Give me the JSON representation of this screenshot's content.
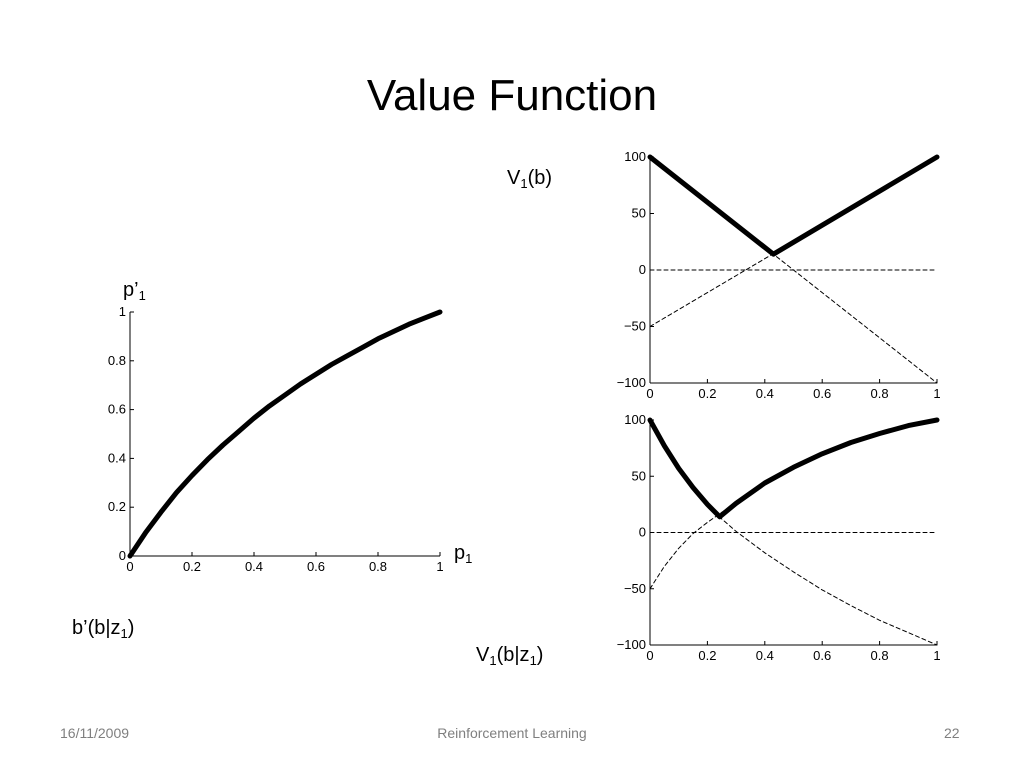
{
  "slide": {
    "title": "Value Function"
  },
  "labels": {
    "v1_b": {
      "main": "V",
      "sub": "1",
      "rest": "(b)"
    },
    "p1_prime": {
      "main": "p’",
      "sub": "1",
      "rest": ""
    },
    "p1": {
      "main": "p",
      "sub": "1",
      "rest": ""
    },
    "b_prime": {
      "main": "b’(b|z",
      "sub": "1",
      "rest": ")"
    },
    "v1_bz": {
      "main": "V",
      "sub": "1",
      "rest": "(b|z",
      "sub2": "1",
      "rest2": ")"
    }
  },
  "footer": {
    "date": "16/11/2009",
    "topic": "Reinforcement Learning",
    "page": "22"
  },
  "chart_data": [
    {
      "id": "belief-update",
      "type": "line",
      "x_ticks": [
        "0",
        "0.2",
        "0.4",
        "0.6",
        "0.8",
        "1"
      ],
      "y_ticks": [
        "0",
        "0.2",
        "0.4",
        "0.6",
        "0.8",
        "1"
      ],
      "xlim": [
        0,
        1
      ],
      "ylim": [
        0,
        1
      ],
      "series": [
        {
          "style": "solid-thick",
          "x": [
            0,
            0.05,
            0.1,
            0.15,
            0.2,
            0.25,
            0.3,
            0.35,
            0.4,
            0.45,
            0.5,
            0.55,
            0.6,
            0.65,
            0.7,
            0.75,
            0.8,
            0.85,
            0.9,
            0.95,
            1
          ],
          "y": [
            0,
            0.095,
            0.18,
            0.26,
            0.33,
            0.395,
            0.455,
            0.51,
            0.565,
            0.615,
            0.66,
            0.705,
            0.745,
            0.785,
            0.82,
            0.855,
            0.89,
            0.92,
            0.95,
            0.975,
            1.0
          ]
        }
      ]
    },
    {
      "id": "value-top",
      "type": "line",
      "x_ticks": [
        "0",
        "0.2",
        "0.4",
        "0.6",
        "0.8",
        "1"
      ],
      "y_ticks": [
        "−100",
        "−50",
        "0",
        "50",
        "100"
      ],
      "xlim": [
        0,
        1
      ],
      "ylim": [
        -100,
        100
      ],
      "series": [
        {
          "style": "solid-thick",
          "x": [
            0,
            0.43,
            1
          ],
          "y": [
            100,
            14,
            100
          ]
        },
        {
          "style": "dashed",
          "x": [
            0,
            1
          ],
          "y": [
            -50,
            100
          ]
        },
        {
          "style": "dashed",
          "x": [
            0,
            1
          ],
          "y": [
            100,
            -100
          ]
        },
        {
          "style": "dashed",
          "x": [
            0,
            1
          ],
          "y": [
            0,
            0
          ]
        }
      ]
    },
    {
      "id": "value-bottom",
      "type": "line",
      "x_ticks": [
        "0",
        "0.2",
        "0.4",
        "0.6",
        "0.8",
        "1"
      ],
      "y_ticks": [
        "−100",
        "−50",
        "0",
        "50",
        "100"
      ],
      "xlim": [
        0,
        1
      ],
      "ylim": [
        -100,
        100
      ],
      "series": [
        {
          "style": "solid-thick",
          "x": [
            0,
            0.05,
            0.1,
            0.15,
            0.2,
            0.243,
            0.3,
            0.4,
            0.5,
            0.6,
            0.7,
            0.8,
            0.9,
            1.0
          ],
          "y": [
            100,
            77,
            57,
            40,
            25,
            14,
            26,
            44,
            58,
            70,
            80,
            88,
            95,
            100
          ]
        },
        {
          "style": "dashed",
          "x": [
            0,
            0.05,
            0.1,
            0.15,
            0.2,
            0.25,
            0.3,
            0.4,
            0.5,
            0.6,
            0.7,
            0.8,
            0.9,
            1.0
          ],
          "y": [
            -50,
            -30,
            -14,
            -1,
            9,
            18,
            26,
            44,
            58,
            70,
            80,
            88,
            95,
            100
          ]
        },
        {
          "style": "dashed",
          "x": [
            0,
            0.05,
            0.1,
            0.15,
            0.2,
            0.25,
            0.3,
            0.4,
            0.5,
            0.6,
            0.7,
            0.8,
            0.9,
            1.0
          ],
          "y": [
            100,
            77,
            57,
            40,
            25,
            12,
            1,
            -18,
            -35,
            -51,
            -65,
            -78,
            -89,
            -100
          ]
        },
        {
          "style": "dashed",
          "x": [
            0,
            1
          ],
          "y": [
            0,
            0
          ]
        }
      ]
    }
  ]
}
